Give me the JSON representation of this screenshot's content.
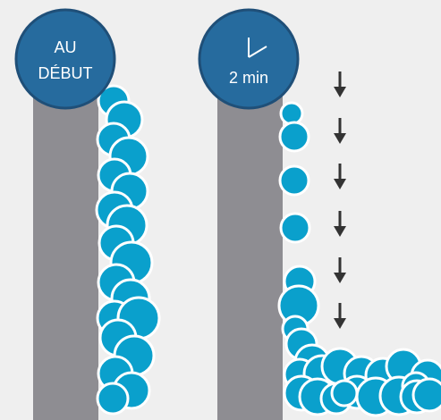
{
  "colors": {
    "background": "#efefef",
    "wall": "#8e8d92",
    "drop": "#0aa0cc",
    "drop_outline": "#ffffff",
    "badge_fill": "#266b9e",
    "badge_border": "#1f4f78",
    "arrow": "#333333"
  },
  "panels": [
    {
      "badge_line1": "AU",
      "badge_line2": "DÉBUT"
    },
    {
      "badge_icon": "clock-icon",
      "badge_text": "2 min"
    }
  ],
  "arrow_count": 6
}
